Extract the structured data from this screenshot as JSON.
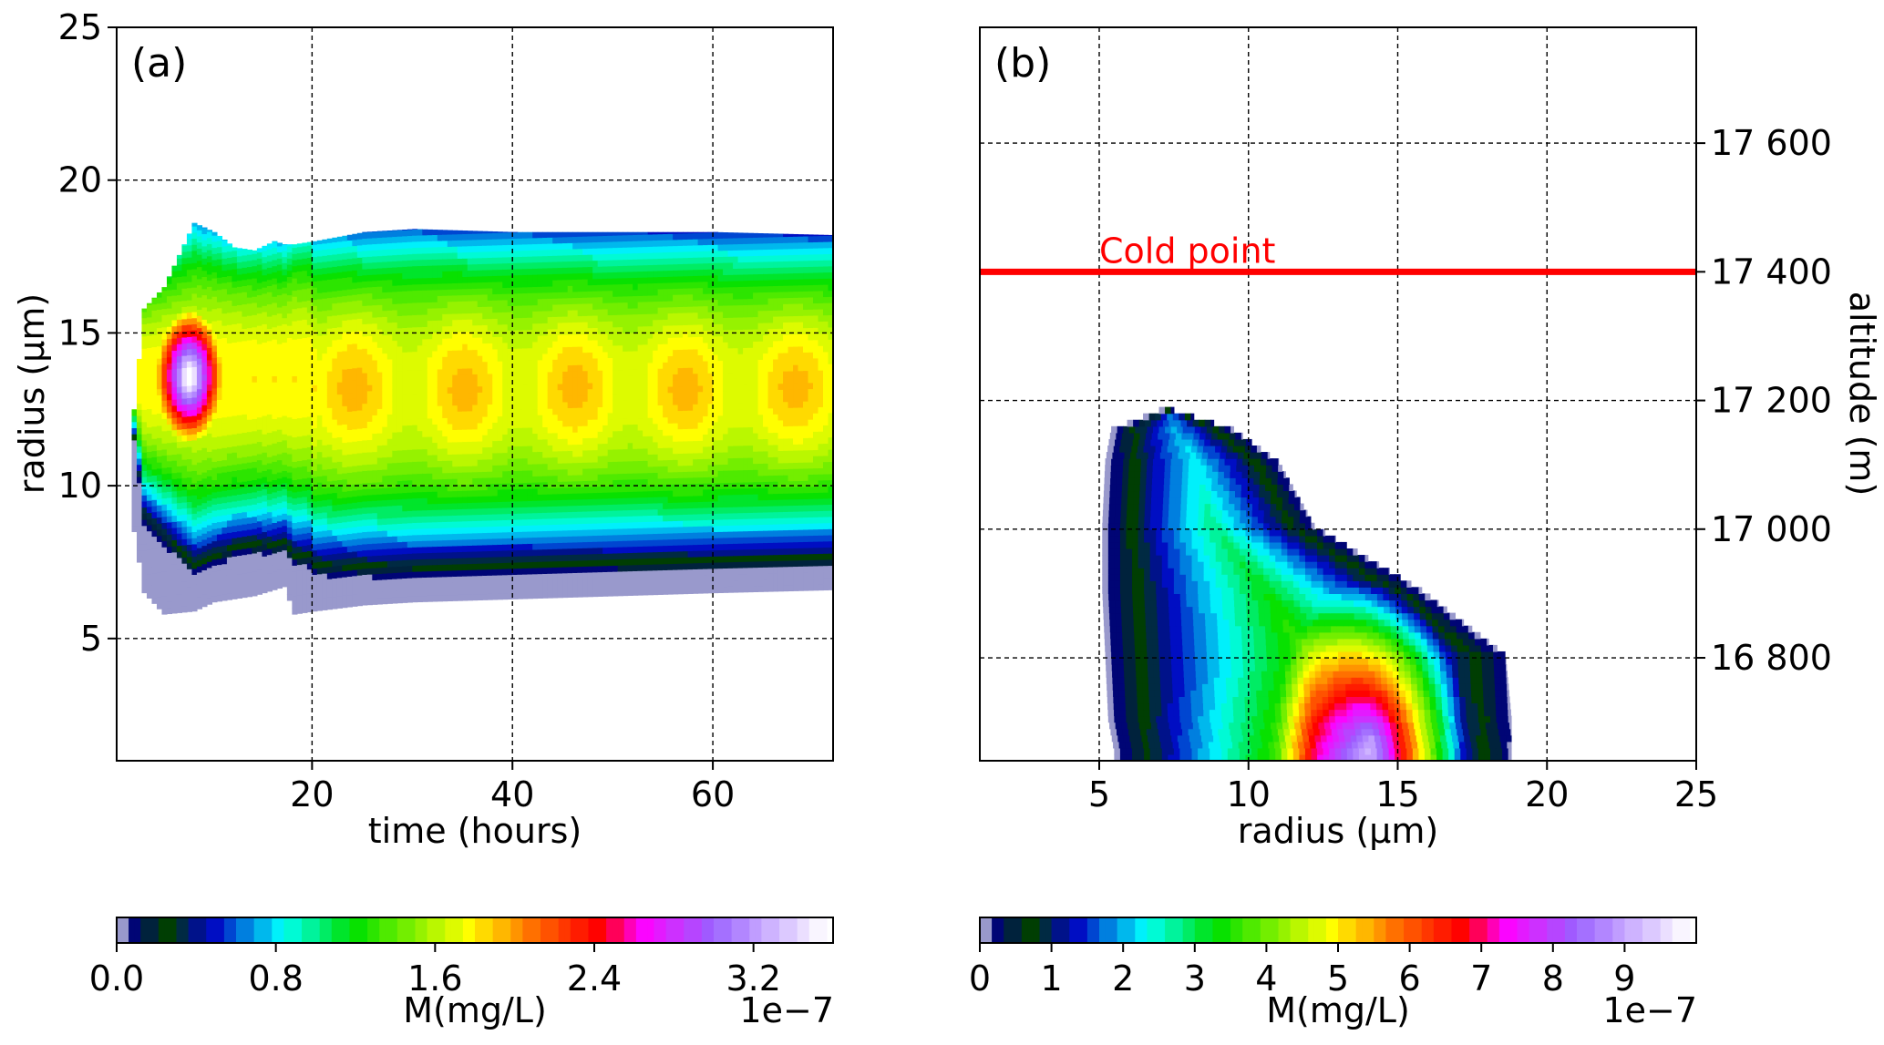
{
  "panels": [
    {
      "id": "a",
      "label": "(a)",
      "xlabel": "time (hours)",
      "ylabel": "radius (µm)",
      "xticks": [
        "20",
        "40",
        "60"
      ],
      "yticks": [
        "5",
        "10",
        "15",
        "20",
        "25"
      ]
    },
    {
      "id": "b",
      "label": "(b)",
      "xlabel": "radius (µm)",
      "ylabel_right": "altitude (m)",
      "xticks": [
        "5",
        "10",
        "15",
        "20",
        "25"
      ],
      "yticks_right": [
        "16 800",
        "17 000",
        "17 200",
        "17 400",
        "17 600"
      ],
      "annotation": "Cold point"
    }
  ],
  "colorbars": [
    {
      "label": "M(mg/L)",
      "offset_text": "1e−7",
      "ticks": [
        "0.0",
        "0.8",
        "1.6",
        "2.4",
        "3.2"
      ]
    },
    {
      "label": "M(mg/L)",
      "offset_text": "1e−7",
      "ticks": [
        "0",
        "1",
        "2",
        "3",
        "4",
        "5",
        "6",
        "7",
        "8",
        "9"
      ]
    }
  ],
  "colors": {
    "cold_point_line": "#ff0000",
    "grid": "#000000"
  },
  "colormap": [
    "#ffffff",
    "#000080",
    "#004000",
    "#0000c0",
    "#00ffff",
    "#00e000",
    "#ffff00",
    "#ff6000",
    "#ff0000",
    "#ff00ff",
    "#9a60ff",
    "#ffffff"
  ],
  "chart_data": [
    {
      "type": "heatmap",
      "panel": "a",
      "x_name": "time (hours)",
      "y_name": "radius (µm)",
      "xlim": [
        0.5,
        72
      ],
      "ylim": [
        1,
        25
      ],
      "clim": [
        0,
        3.6e-07
      ],
      "xticks": [
        20,
        40,
        60
      ],
      "yticks": [
        5,
        10,
        15,
        20,
        25
      ],
      "grid": true,
      "envelope": {
        "x": [
          2,
          3,
          5,
          8,
          10,
          12,
          14,
          16,
          17,
          18,
          20,
          25,
          30,
          40,
          50,
          60,
          72
        ],
        "y_low": [
          8.5,
          6.5,
          5.8,
          5.9,
          6.2,
          6.3,
          6.4,
          6.6,
          6.7,
          5.8,
          5.9,
          6.1,
          6.2,
          6.3,
          6.4,
          6.5,
          6.6
        ],
        "y_high": [
          12.5,
          15.8,
          16.5,
          18.6,
          18.3,
          17.8,
          17.7,
          18.0,
          17.9,
          17.9,
          18.0,
          18.3,
          18.4,
          18.3,
          18.3,
          18.3,
          18.2
        ]
      },
      "peak": {
        "x": 7.5,
        "y": 13.5,
        "value": 3.6e-07
      },
      "plateau": {
        "x": [
          20,
          72
        ],
        "y": 13.2,
        "value": 1.7e-07
      }
    },
    {
      "type": "heatmap",
      "panel": "b",
      "x_name": "radius (µm)",
      "y_name": "altitude (m)",
      "xlim": [
        1,
        25
      ],
      "ylim": [
        16640,
        17780
      ],
      "clim": [
        0,
        1e-06
      ],
      "xticks": [
        5,
        10,
        15,
        20,
        25
      ],
      "yticks": [
        16800,
        17000,
        17200,
        17400,
        17600
      ],
      "grid": true,
      "cold_point_altitude": 17400,
      "envelope": {
        "altitude": [
          16650,
          16700,
          16800,
          16900,
          17000,
          17100,
          17150,
          17180
        ],
        "x_low": [
          5.5,
          5.3,
          5.2,
          5.1,
          5.1,
          5.2,
          5.4,
          7.0
        ],
        "x_high": [
          18.8,
          18.8,
          18.6,
          15.8,
          12.2,
          11.0,
          9.5,
          7.5
        ]
      },
      "peak": {
        "x": 14,
        "altitude": 16660,
        "value": 1e-06
      }
    }
  ]
}
